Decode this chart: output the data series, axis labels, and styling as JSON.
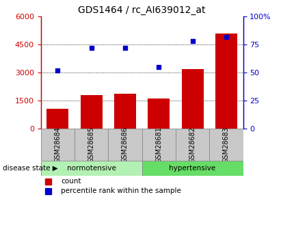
{
  "title": "GDS1464 / rc_AI639012_at",
  "categories": [
    "GSM28684",
    "GSM28685",
    "GSM28686",
    "GSM28681",
    "GSM28682",
    "GSM28683"
  ],
  "bar_values": [
    1050,
    1800,
    1850,
    1600,
    3200,
    5100
  ],
  "scatter_values": [
    52,
    72,
    72,
    55,
    78,
    82
  ],
  "bar_color": "#cc0000",
  "scatter_color": "#0000cc",
  "left_ylim": [
    0,
    6000
  ],
  "left_yticks": [
    0,
    1500,
    3000,
    4500,
    6000
  ],
  "right_ylim": [
    0,
    100
  ],
  "right_yticks": [
    0,
    25,
    50,
    75,
    100
  ],
  "right_yticklabels": [
    "0",
    "25",
    "50",
    "75",
    "100%"
  ],
  "disease_label": "disease state",
  "norm_label": "normotensive",
  "hyper_label": "hypertensive",
  "legend_count": "count",
  "legend_pct": "percentile rank within the sample",
  "norm_color": "#b3f0b3",
  "hyper_color": "#66dd66",
  "tick_bg_color": "#c8c8c8",
  "title_fontsize": 10,
  "axis_fontsize": 8,
  "tick_fontsize": 8
}
